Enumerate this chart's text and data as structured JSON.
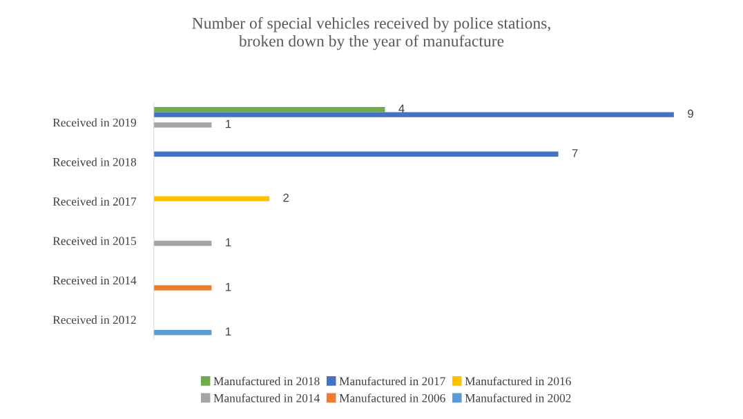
{
  "chart_data": {
    "type": "bar",
    "orientation": "horizontal",
    "title": "Number of special vehicles received by police stations,\nbroken down by the year of manufacture",
    "categories": [
      "Received in 2019",
      "Received in 2018",
      "Received in 2017",
      "Received in 2015",
      "Received in 2014",
      "Received in 2012"
    ],
    "series": [
      {
        "name": "Manufactured in 2018",
        "color": "#70ad47",
        "values": [
          4,
          null,
          null,
          null,
          null,
          null
        ]
      },
      {
        "name": "Manufactured in 2017",
        "color": "#4472c4",
        "values": [
          9,
          7,
          null,
          null,
          null,
          null
        ]
      },
      {
        "name": "Manufactured in 2016",
        "color": "#ffc000",
        "values": [
          null,
          null,
          2,
          null,
          null,
          null
        ]
      },
      {
        "name": "Manufactured in 2014",
        "color": "#a5a5a5",
        "values": [
          1,
          null,
          null,
          1,
          null,
          null
        ]
      },
      {
        "name": "Manufactured in 2006",
        "color": "#ed7d31",
        "values": [
          null,
          null,
          null,
          null,
          1,
          null
        ]
      },
      {
        "name": "Manufactured in 2002",
        "color": "#5b9bd5",
        "values": [
          null,
          null,
          null,
          null,
          null,
          1
        ]
      }
    ],
    "data_labels": true,
    "legend": "bottom",
    "grid": false
  }
}
